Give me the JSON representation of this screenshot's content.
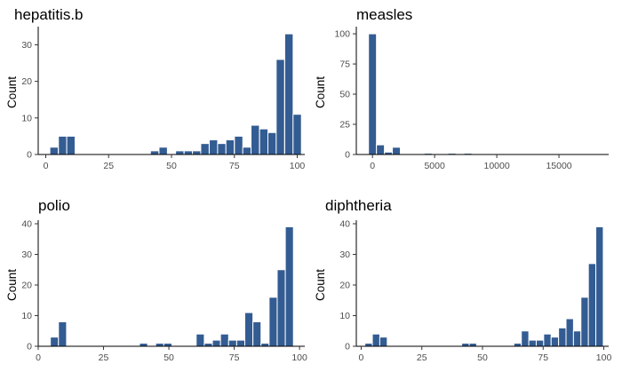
{
  "bar_color": "#335c92",
  "bar_edge_color": "#ffffff",
  "chart_data": [
    {
      "type": "bar",
      "title": "hepatitis.b",
      "xlabel": "",
      "ylabel": "Count",
      "xlim": [
        -3,
        103
      ],
      "ylim": [
        0,
        34
      ],
      "xticks": [
        0,
        25,
        50,
        75,
        100
      ],
      "yticks": [
        0,
        10,
        20,
        30
      ],
      "bin_width": 3.33,
      "bins": [
        {
          "x": 3.3,
          "count": 2
        },
        {
          "x": 6.7,
          "count": 5
        },
        {
          "x": 10.0,
          "count": 5
        },
        {
          "x": 43.3,
          "count": 1
        },
        {
          "x": 46.7,
          "count": 2
        },
        {
          "x": 53.3,
          "count": 1
        },
        {
          "x": 56.7,
          "count": 1
        },
        {
          "x": 60.0,
          "count": 1
        },
        {
          "x": 63.3,
          "count": 3
        },
        {
          "x": 66.7,
          "count": 4
        },
        {
          "x": 70.0,
          "count": 3
        },
        {
          "x": 73.3,
          "count": 4
        },
        {
          "x": 76.7,
          "count": 5
        },
        {
          "x": 80.0,
          "count": 2
        },
        {
          "x": 83.3,
          "count": 8
        },
        {
          "x": 86.7,
          "count": 7
        },
        {
          "x": 90.0,
          "count": 6
        },
        {
          "x": 93.3,
          "count": 26
        },
        {
          "x": 96.7,
          "count": 33
        },
        {
          "x": 100.0,
          "count": 11
        }
      ]
    },
    {
      "type": "bar",
      "title": "measles",
      "xlabel": "",
      "ylabel": "Count",
      "xlim": [
        -1300,
        19000
      ],
      "ylim": [
        0,
        103
      ],
      "xticks": [
        0,
        5000,
        10000,
        15000
      ],
      "yticks": [
        0,
        25,
        50,
        75,
        100
      ],
      "bin_width": 640,
      "bins": [
        {
          "x": 0,
          "count": 100
        },
        {
          "x": 640,
          "count": 8
        },
        {
          "x": 1280,
          "count": 2
        },
        {
          "x": 1920,
          "count": 6
        },
        {
          "x": 4480,
          "count": 1
        },
        {
          "x": 6400,
          "count": 1
        },
        {
          "x": 7680,
          "count": 1
        }
      ]
    },
    {
      "type": "bar",
      "title": "polio",
      "xlabel": "",
      "ylabel": "Count",
      "xlim": [
        0,
        102
      ],
      "ylim": [
        0,
        40
      ],
      "xticks": [
        0,
        25,
        50,
        75,
        100
      ],
      "yticks": [
        0,
        10,
        20,
        30,
        40
      ],
      "bin_width": 3.1,
      "bins": [
        {
          "x": 6.2,
          "count": 3
        },
        {
          "x": 9.3,
          "count": 8
        },
        {
          "x": 40.3,
          "count": 1
        },
        {
          "x": 46.5,
          "count": 1
        },
        {
          "x": 49.6,
          "count": 1
        },
        {
          "x": 62.0,
          "count": 4
        },
        {
          "x": 65.1,
          "count": 1
        },
        {
          "x": 68.2,
          "count": 2
        },
        {
          "x": 71.3,
          "count": 4
        },
        {
          "x": 74.4,
          "count": 2
        },
        {
          "x": 77.5,
          "count": 2
        },
        {
          "x": 80.6,
          "count": 11
        },
        {
          "x": 83.7,
          "count": 8
        },
        {
          "x": 86.8,
          "count": 1
        },
        {
          "x": 89.9,
          "count": 16
        },
        {
          "x": 93.0,
          "count": 25
        },
        {
          "x": 96.1,
          "count": 39
        }
      ]
    },
    {
      "type": "bar",
      "title": "diphtheria",
      "xlabel": "",
      "ylabel": "Count",
      "xlim": [
        -2,
        102
      ],
      "ylim": [
        0,
        40
      ],
      "xticks": [
        0,
        25,
        50,
        75,
        100
      ],
      "yticks": [
        0,
        10,
        20,
        30,
        40
      ],
      "bin_width": 3.07,
      "bins": [
        {
          "x": 3.07,
          "count": 1
        },
        {
          "x": 6.14,
          "count": 4
        },
        {
          "x": 9.21,
          "count": 3
        },
        {
          "x": 42.98,
          "count": 1
        },
        {
          "x": 46.05,
          "count": 1
        },
        {
          "x": 64.47,
          "count": 1
        },
        {
          "x": 67.54,
          "count": 5
        },
        {
          "x": 70.61,
          "count": 2
        },
        {
          "x": 73.68,
          "count": 2
        },
        {
          "x": 76.75,
          "count": 4
        },
        {
          "x": 79.82,
          "count": 3
        },
        {
          "x": 82.89,
          "count": 6
        },
        {
          "x": 85.96,
          "count": 9
        },
        {
          "x": 89.03,
          "count": 5
        },
        {
          "x": 92.1,
          "count": 16
        },
        {
          "x": 95.17,
          "count": 27
        },
        {
          "x": 98.24,
          "count": 39
        }
      ]
    }
  ]
}
